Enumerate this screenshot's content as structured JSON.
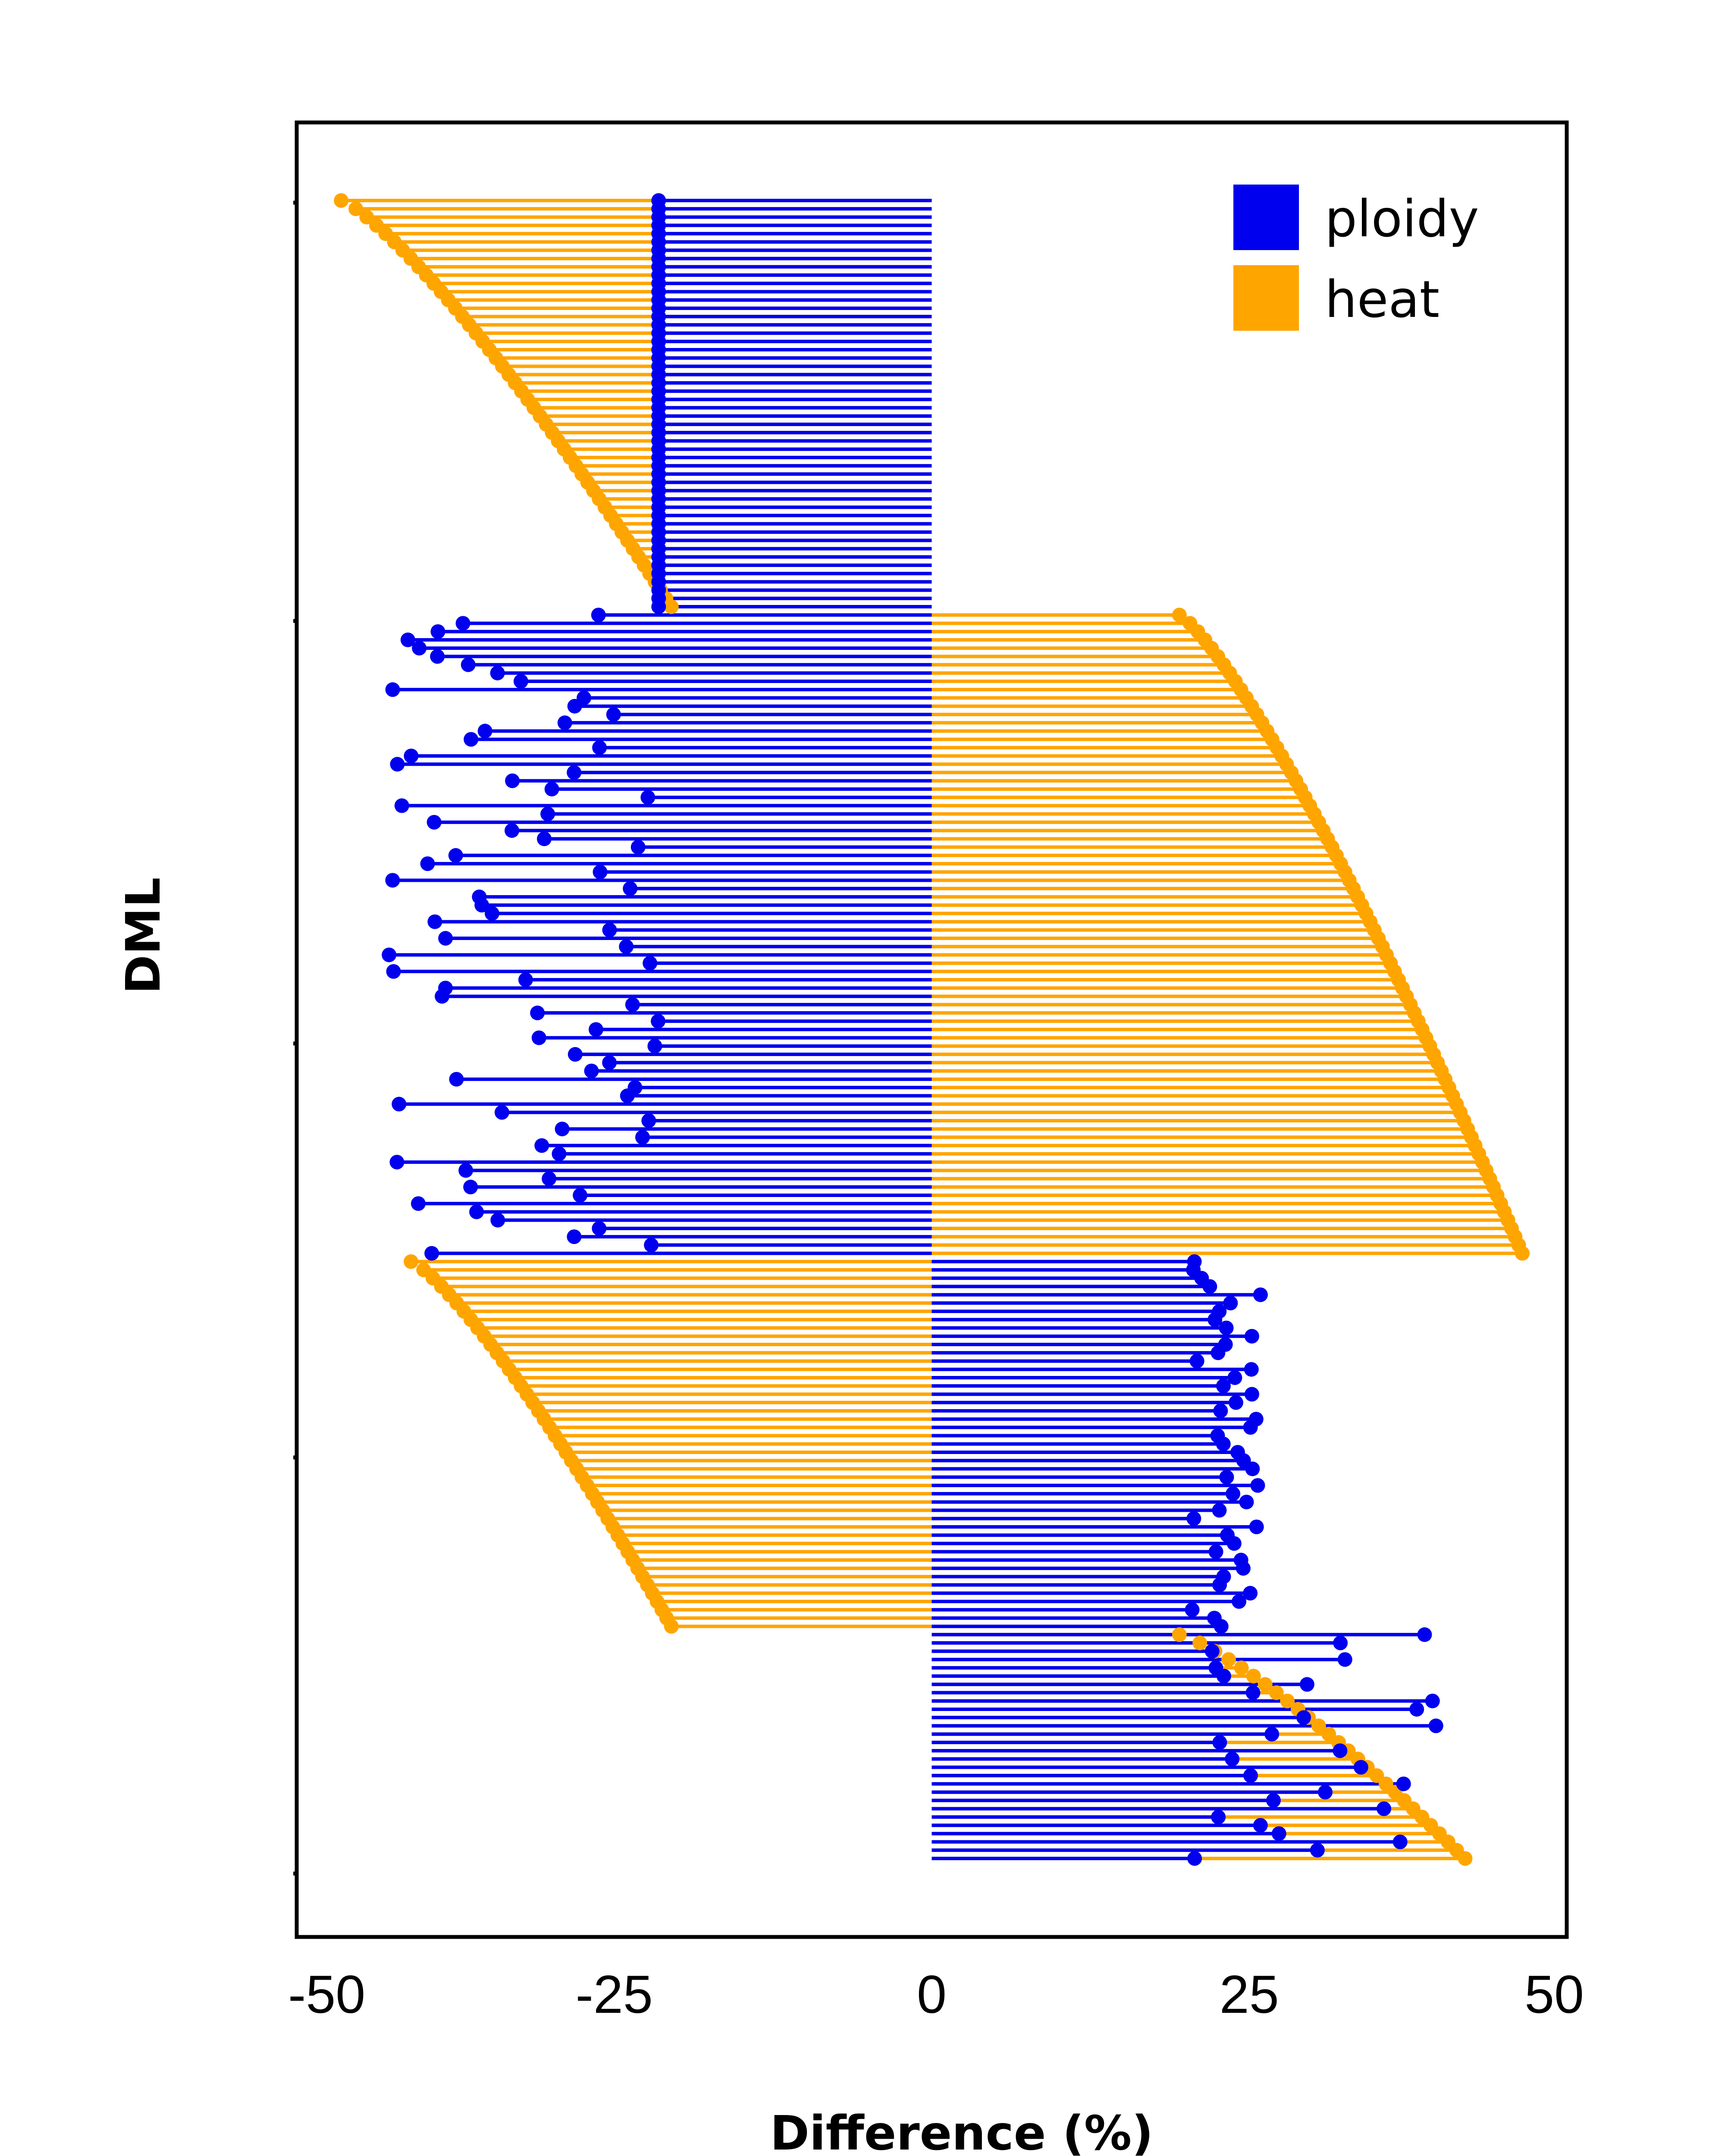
{
  "chart_data": {
    "type": "lollipop",
    "xlabel": "Difference (%)",
    "ylabel": "DML",
    "xlim": [
      -50,
      50
    ],
    "x_ticks": [
      "-50",
      "-25",
      "0",
      "25",
      "50"
    ],
    "x_tick_values": [
      -50,
      -25,
      0,
      25,
      50
    ],
    "grid": false,
    "legend_position": "top-right",
    "legend": [
      {
        "name": "ploidy",
        "color": "#0000ee"
      },
      {
        "name": "heat",
        "color": "#ffa500"
      }
    ],
    "colors": {
      "ploidy": "#0000ee",
      "heat": "#ffa500"
    },
    "groups": [
      {
        "rows": 50,
        "ploidy": {
          "from": -21.5,
          "to": -21.5
        },
        "heat": {
          "from": -46.5,
          "to": -20.5
        }
      },
      {
        "rows": 78,
        "ploidy": {
          "from": -43,
          "to": -21.5
        },
        "heat": {
          "from": 19.5,
          "to": 46.5
        }
      },
      {
        "rows": 45,
        "ploidy": {
          "from": 20.5,
          "to": 26
        },
        "heat": {
          "from": -41,
          "to": -20.5
        }
      },
      {
        "rows": 28,
        "ploidy": {
          "from": 20,
          "to": 40
        },
        "heat": {
          "from": 19.5,
          "to": 42
        }
      }
    ]
  }
}
